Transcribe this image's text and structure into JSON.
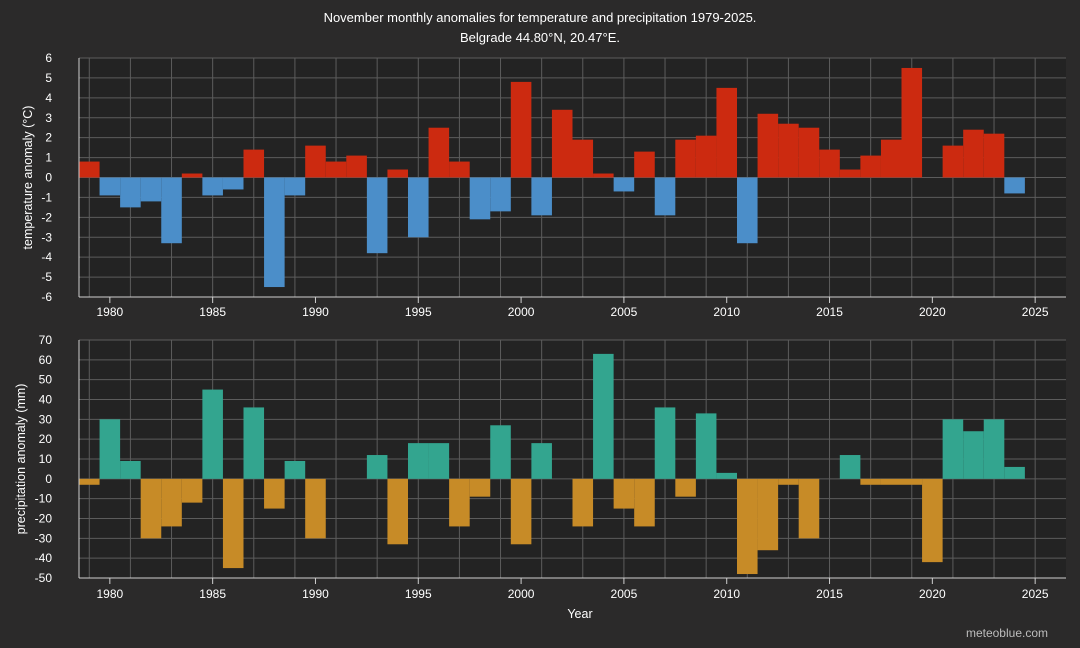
{
  "chart_data": [
    {
      "type": "bar",
      "title": "November monthly anomalies for temperature and precipitation 1979-2025.",
      "subtitle": "Belgrade 44.80°N, 20.47°E.",
      "xlabel": "",
      "ylabel": "temperature anomaly (°C)",
      "ylim": [
        -6,
        6
      ],
      "yticks": [
        6,
        5,
        4,
        3,
        2,
        1,
        0,
        -1,
        -2,
        -3,
        -4,
        -5,
        -6
      ],
      "xticks": [
        1980,
        1985,
        1990,
        1995,
        2000,
        2005,
        2010,
        2015,
        2020,
        2025
      ],
      "xlim": [
        1978.5,
        2026.5
      ],
      "positive_color": "#cc2a10",
      "negative_color": "#4b8ec9",
      "years": [
        1979,
        1980,
        1981,
        1982,
        1983,
        1984,
        1985,
        1986,
        1987,
        1988,
        1989,
        1990,
        1991,
        1992,
        1993,
        1994,
        1995,
        1996,
        1997,
        1998,
        1999,
        2000,
        2001,
        2002,
        2003,
        2004,
        2005,
        2006,
        2007,
        2008,
        2009,
        2010,
        2011,
        2012,
        2013,
        2014,
        2015,
        2016,
        2017,
        2018,
        2019,
        2020,
        2021,
        2022,
        2023,
        2024
      ],
      "values": [
        0.8,
        -0.9,
        -1.5,
        -1.2,
        -3.3,
        0.2,
        -0.9,
        -0.6,
        1.4,
        -5.5,
        -0.9,
        1.6,
        0.8,
        1.1,
        -3.8,
        0.4,
        -3.0,
        2.5,
        0.8,
        -2.1,
        -1.7,
        4.8,
        -1.9,
        3.4,
        1.9,
        0.2,
        -0.7,
        1.3,
        -1.9,
        1.9,
        2.1,
        4.5,
        -3.3,
        3.2,
        2.7,
        2.5,
        1.4,
        0.4,
        1.1,
        1.9,
        5.5,
        0.0,
        1.6,
        2.4,
        2.2,
        -0.8
      ]
    },
    {
      "type": "bar",
      "title": "",
      "xlabel": "Year",
      "ylabel": "precipitation anomaly (mm)",
      "ylim": [
        -50,
        70
      ],
      "yticks": [
        70,
        60,
        50,
        40,
        30,
        20,
        10,
        0,
        -10,
        -20,
        -30,
        -40,
        -50
      ],
      "xticks": [
        1980,
        1985,
        1990,
        1995,
        2000,
        2005,
        2010,
        2015,
        2020,
        2025
      ],
      "xlim": [
        1978.5,
        2026.5
      ],
      "positive_color": "#33a58f",
      "negative_color": "#c78b27",
      "years": [
        1979,
        1980,
        1981,
        1982,
        1983,
        1984,
        1985,
        1986,
        1987,
        1988,
        1989,
        1990,
        1991,
        1992,
        1993,
        1994,
        1995,
        1996,
        1997,
        1998,
        1999,
        2000,
        2001,
        2002,
        2003,
        2004,
        2005,
        2006,
        2007,
        2008,
        2009,
        2010,
        2011,
        2012,
        2013,
        2014,
        2015,
        2016,
        2017,
        2018,
        2019,
        2020,
        2021,
        2022,
        2023,
        2024
      ],
      "values": [
        -3,
        30,
        9,
        -30,
        -24,
        -12,
        45,
        -45,
        36,
        -15,
        9,
        -30,
        0,
        0,
        12,
        -33,
        18,
        18,
        -24,
        -9,
        27,
        -33,
        18,
        0,
        -24,
        63,
        -15,
        -24,
        36,
        -9,
        33,
        3,
        -48,
        -36,
        -3,
        -30,
        0,
        12,
        -3,
        -3,
        -3,
        -42,
        30,
        24,
        30,
        6
      ]
    }
  ],
  "credit": "meteoblue.com"
}
